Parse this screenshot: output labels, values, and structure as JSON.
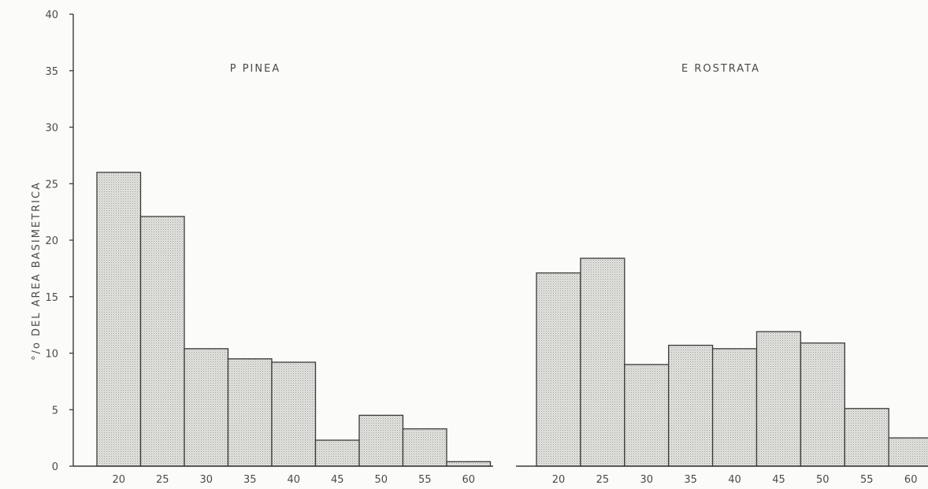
{
  "colors": {
    "bar_fill": "#d9d9d6",
    "bar_stroke": "#3a3a3a",
    "axis": "#3a3a3a",
    "text": "#4a4a4a"
  },
  "chart_data": [
    {
      "type": "bar",
      "title": "P PINEA",
      "ylabel": "°/o DEL AREA BASIMETRICA",
      "xlabel": "",
      "categories": [
        "20",
        "25",
        "30",
        "35",
        "40",
        "45",
        "50",
        "55",
        "60"
      ],
      "values": [
        26.0,
        22.1,
        10.4,
        9.5,
        9.2,
        2.3,
        4.5,
        3.3,
        0.4
      ],
      "ylim": [
        0,
        40
      ],
      "yticks": [
        "0",
        "5",
        "10",
        "15",
        "20",
        "25",
        "30",
        "35",
        "40"
      ],
      "grid": false
    },
    {
      "type": "bar",
      "title": "E ROSTRATA",
      "ylabel": "",
      "xlabel": "",
      "categories": [
        "20",
        "25",
        "30",
        "35",
        "40",
        "45",
        "50",
        "55",
        "60"
      ],
      "values": [
        17.1,
        18.4,
        9.0,
        10.7,
        10.4,
        11.9,
        10.9,
        5.1,
        2.5
      ],
      "ylim": [
        0,
        40
      ],
      "grid": false
    }
  ]
}
